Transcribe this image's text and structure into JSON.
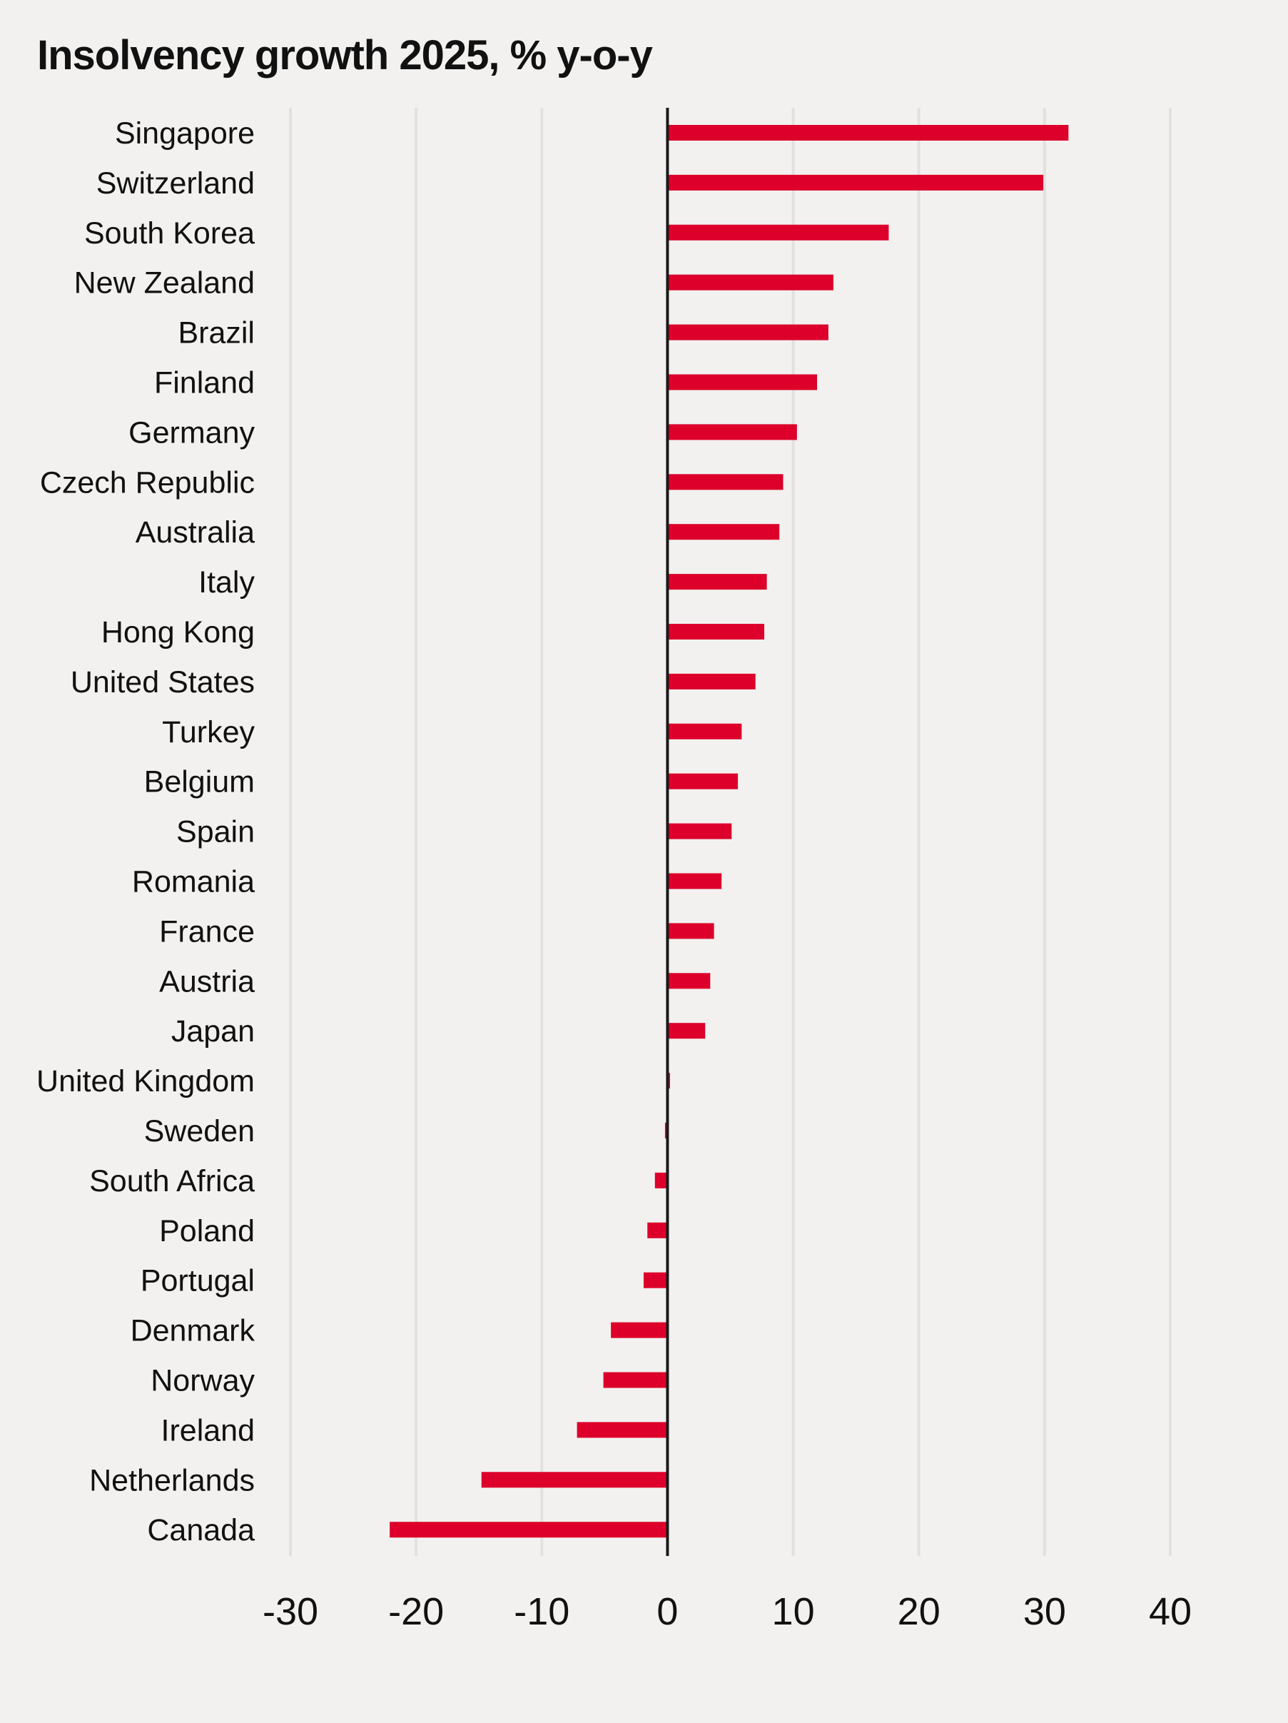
{
  "chart_data": {
    "type": "bar",
    "orientation": "horizontal",
    "title": "Insolvency growth 2025, % y-o-y",
    "xlabel": "",
    "ylabel": "",
    "xlim": [
      -30,
      40
    ],
    "xticks": [
      -30,
      -20,
      -10,
      0,
      10,
      20,
      30,
      40
    ],
    "grid": true,
    "bar_color": "#dc002b",
    "categories": [
      "Singapore",
      "Switzerland",
      "South Korea",
      "New Zealand",
      "Brazil",
      "Finland",
      "Germany",
      "Czech Republic",
      "Australia",
      "Italy",
      "Hong Kong",
      "United States",
      "Turkey",
      "Belgium",
      "Spain",
      "Romania",
      "France",
      "Austria",
      "Japan",
      "United Kingdom",
      "Sweden",
      "South Africa",
      "Poland",
      "Portugal",
      "Denmark",
      "Norway",
      "Ireland",
      "Netherlands",
      "Canada"
    ],
    "values": [
      31.9,
      29.9,
      17.6,
      13.2,
      12.8,
      11.9,
      10.3,
      9.2,
      8.9,
      7.9,
      7.7,
      7.0,
      5.9,
      5.6,
      5.1,
      4.3,
      3.7,
      3.4,
      3.0,
      0.2,
      -0.2,
      -1.0,
      -1.6,
      -1.9,
      -4.5,
      -5.1,
      -7.2,
      -14.8,
      -22.1
    ]
  }
}
